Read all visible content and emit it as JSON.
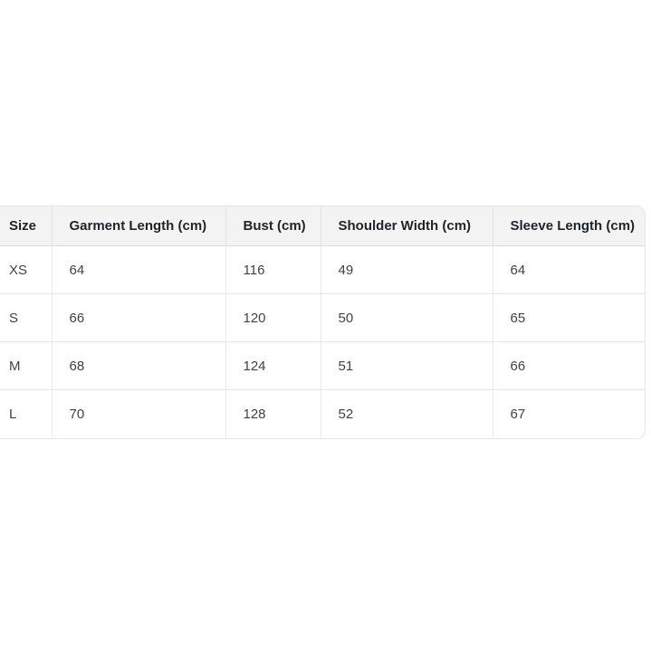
{
  "size_chart": {
    "columns": [
      {
        "label": "Size"
      },
      {
        "label": "Garment Length (cm)"
      },
      {
        "label": "Bust (cm)"
      },
      {
        "label": "Shoulder Width (cm)"
      },
      {
        "label": "Sleeve Length (cm)"
      }
    ],
    "rows": [
      {
        "cells": [
          "XS",
          "64",
          "116",
          "49",
          "64"
        ]
      },
      {
        "cells": [
          "S",
          "66",
          "120",
          "50",
          "65"
        ]
      },
      {
        "cells": [
          "M",
          "68",
          "124",
          "51",
          "66"
        ]
      },
      {
        "cells": [
          "L",
          "70",
          "128",
          "52",
          "67"
        ]
      }
    ],
    "colors": {
      "header_background": "#f3f3f4",
      "card_border": "#e4e6e9",
      "header_text": "#1f2428",
      "body_text": "#3d4348"
    }
  }
}
